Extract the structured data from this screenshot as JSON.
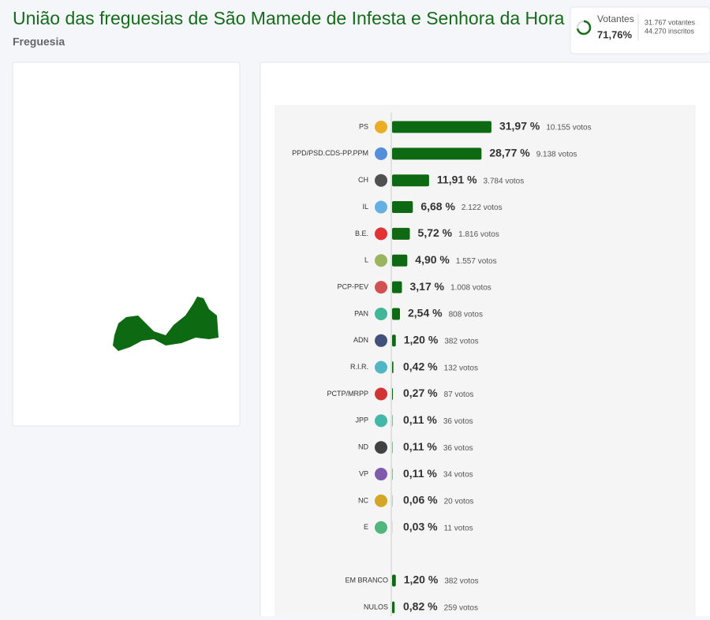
{
  "header": {
    "title": "União das freguesias de São Mamede de Infesta e Senhora da Hora",
    "subtitle": "Freguesia"
  },
  "turnout": {
    "label": "Votantes",
    "value": 71.76,
    "value_label": "71,76%",
    "voters": "31.767 votantes",
    "registered": "44.270 inscritos"
  },
  "chart_data": [
    {
      "type": "bar",
      "color": "#0d6a12",
      "xlim": [
        0,
        100
      ],
      "categories": [
        "PS",
        "PPD/PSD.CDS-PP.PPM",
        "CH",
        "IL",
        "B.E.",
        "L",
        "PCP-PEV",
        "PAN",
        "ADN",
        "R.I.R.",
        "PCTP/MRPP",
        "JPP",
        "ND",
        "VP",
        "NC",
        "E"
      ],
      "values": [
        31.97,
        28.77,
        11.91,
        6.68,
        5.72,
        4.9,
        3.17,
        2.54,
        1.2,
        0.42,
        0.27,
        0.11,
        0.11,
        0.11,
        0.06,
        0.03
      ],
      "value_labels": [
        "31,97 %",
        "28,77 %",
        "11,91 %",
        "6,68 %",
        "5,72 %",
        "4,90 %",
        "3,17 %",
        "2,54 %",
        "1,20 %",
        "0,42 %",
        "0,27 %",
        "0,11 %",
        "0,11 %",
        "0,11 %",
        "0,06 %",
        "0,03 %"
      ],
      "vote_labels": [
        "10.155 votos",
        "9.138 votos",
        "3.784 votos",
        "2.122 votos",
        "1.816 votos",
        "1.557 votos",
        "1.008 votos",
        "808 votos",
        "382 votos",
        "132 votos",
        "87 votos",
        "36 votos",
        "36 votos",
        "34 votos",
        "20 votos",
        "11 votos"
      ]
    },
    {
      "type": "bar",
      "color": "#0d6a12",
      "xlim": [
        0,
        100
      ],
      "categories": [
        "EM BRANCO",
        "NULOS"
      ],
      "values": [
        1.2,
        0.82
      ],
      "value_labels": [
        "1,20 %",
        "0,82 %"
      ],
      "vote_labels": [
        "382 votos",
        "259 votos"
      ]
    }
  ]
}
